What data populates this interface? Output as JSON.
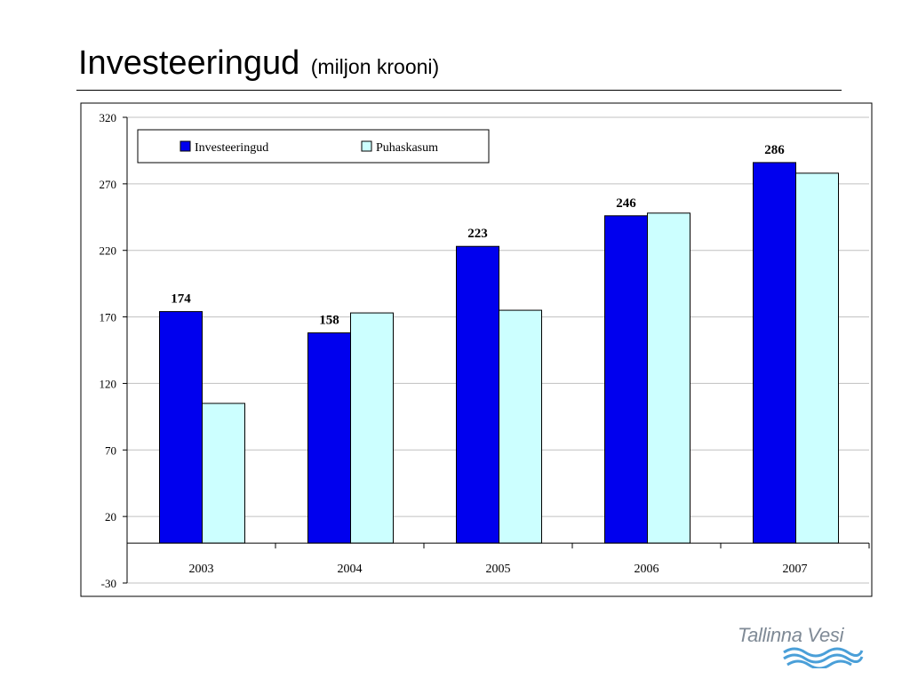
{
  "slide": {
    "title": "Investeeringud",
    "subtitle": "(miljon krooni)"
  },
  "logo": {
    "text": "Tallinna Vesi"
  },
  "colors": {
    "investeeringud": "#0000ee",
    "puhaskasum": "#ccffff",
    "grid": "#c0c0c0",
    "logo_waves": "#4a9fd8"
  },
  "chart_data": {
    "type": "bar",
    "categories": [
      "2003",
      "2004",
      "2005",
      "2006",
      "2007"
    ],
    "series": [
      {
        "name": "Investeeringud",
        "values": [
          174,
          158,
          223,
          246,
          286
        ],
        "labels": [
          "174",
          "158",
          "223",
          "246",
          "286"
        ]
      },
      {
        "name": "Puhaskasum",
        "values": [
          105,
          173,
          175,
          248,
          278
        ]
      }
    ],
    "ylim": [
      -30,
      320
    ],
    "yticks": [
      "320",
      "270",
      "220",
      "170",
      "120",
      "70",
      "20",
      "-30"
    ],
    "ytick_values": [
      320,
      270,
      220,
      170,
      120,
      70,
      20,
      -30
    ],
    "xlabel": "",
    "ylabel": "",
    "grid": true,
    "legend": "top-left"
  }
}
